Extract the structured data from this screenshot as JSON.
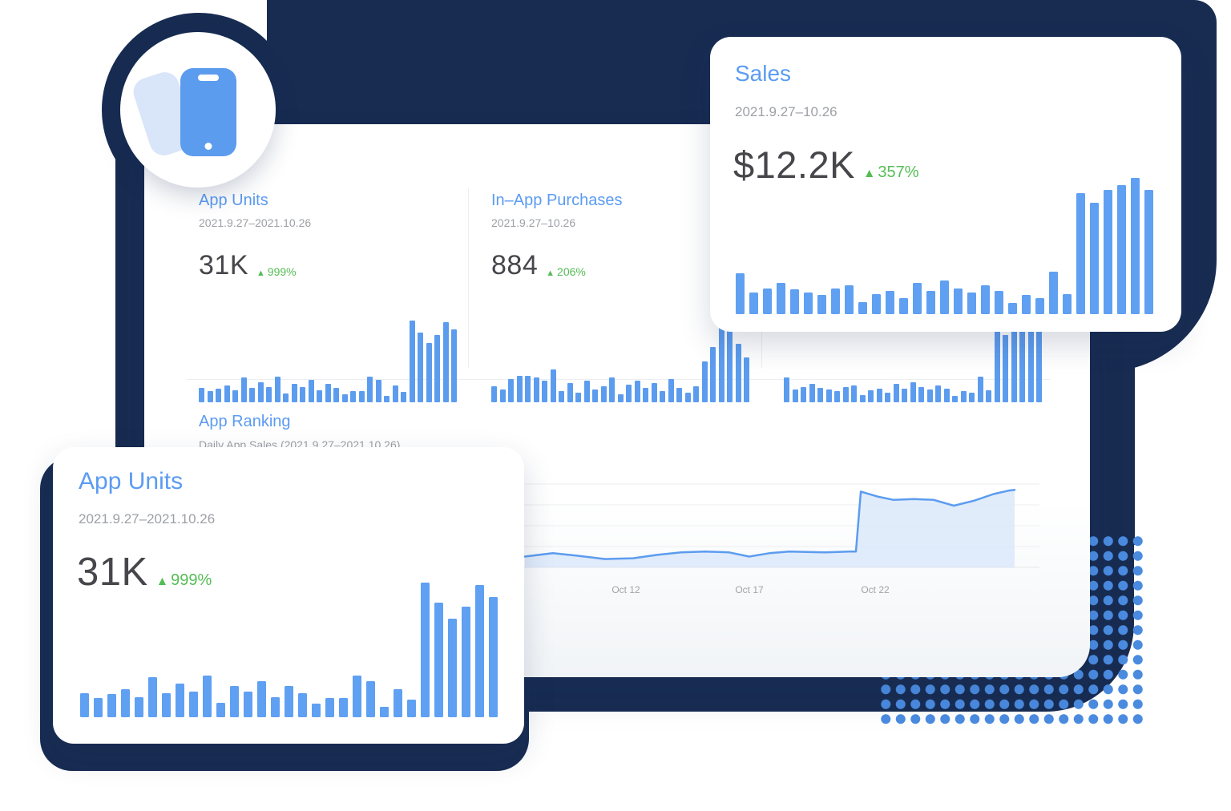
{
  "icons": {
    "up_arrow": "▲",
    "phone_icon": "smartphone"
  },
  "colors": {
    "navy_backdrop": "#182C52",
    "accent_blue": "#5B9BF2",
    "bar_blue": "#5C9CEF",
    "green_positive": "#55BD55",
    "dot_pattern_blue": "#4A8BE0",
    "value_text": "#46464B",
    "muted_text": "#9DA0A5"
  },
  "main_card": {
    "stats": [
      {
        "title": "App Units",
        "date_range": "2021.9.27–2021.10.26",
        "value": "31K",
        "delta": "999%"
      },
      {
        "title": "In–App Purchases",
        "date_range": "2021.9.27–10.26",
        "value": "884",
        "delta": "206%"
      }
    ],
    "ranking": {
      "title": "App Ranking",
      "subtitle": "Daily App Sales (2021.9.27–2021.10.26)",
      "x_ticks": [
        "Oct 12",
        "Oct 17",
        "Oct 22"
      ]
    }
  },
  "cards": {
    "sales": {
      "title": "Sales",
      "date_range": "2021.9.27–10.26",
      "value": "$12.2K",
      "delta": "357%"
    },
    "app_units_large": {
      "title": "App Units",
      "date_range": "2021.9.27–2021.10.26",
      "value": "31K",
      "delta": "999%"
    }
  },
  "chart_data": [
    {
      "type": "bar",
      "name": "app_units_daily",
      "title": "App Units",
      "period": "2021.9.27–2021.10.26",
      "total": "31K",
      "change_pct": "+999%",
      "scale": "relative 0–1 (no y-axis shown)",
      "values": [
        0.18,
        0.14,
        0.17,
        0.21,
        0.15,
        0.3,
        0.18,
        0.25,
        0.19,
        0.31,
        0.11,
        0.23,
        0.19,
        0.27,
        0.15,
        0.23,
        0.18,
        0.1,
        0.14,
        0.14,
        0.31,
        0.27,
        0.08,
        0.21,
        0.13,
        1.0,
        0.85,
        0.73,
        0.82,
        0.98,
        0.89
      ]
    },
    {
      "type": "bar",
      "name": "in_app_purchases_daily",
      "title": "In–App Purchases",
      "period": "2021.9.27–10.26",
      "total": "884",
      "change_pct": "+206%",
      "scale": "relative 0–1 (no y-axis shown)",
      "values": [
        0.2,
        0.16,
        0.28,
        0.32,
        0.32,
        0.3,
        0.26,
        0.4,
        0.14,
        0.24,
        0.12,
        0.26,
        0.16,
        0.2,
        0.3,
        0.1,
        0.22,
        0.26,
        0.18,
        0.24,
        0.14,
        0.28,
        0.18,
        0.12,
        0.2,
        0.5,
        0.68,
        1.0,
        0.88,
        0.72,
        0.55
      ]
    },
    {
      "type": "bar",
      "name": "sales_daily",
      "title": "Sales",
      "period": "2021.9.27–10.26",
      "total": "$12.2K",
      "change_pct": "+357%",
      "scale": "relative 0–1 (no y-axis shown)",
      "values": [
        0.3,
        0.16,
        0.19,
        0.23,
        0.18,
        0.16,
        0.14,
        0.19,
        0.21,
        0.09,
        0.15,
        0.17,
        0.12,
        0.23,
        0.17,
        0.25,
        0.19,
        0.16,
        0.21,
        0.17,
        0.08,
        0.14,
        0.12,
        0.31,
        0.15,
        0.89,
        0.82,
        0.91,
        0.95,
        1.0,
        0.91
      ]
    },
    {
      "type": "line",
      "name": "app_ranking",
      "title": "App Ranking",
      "subtitle": "Daily App Sales (2021.9.27–2021.10.26)",
      "x_ticks": [
        "Oct 12",
        "Oct 17",
        "Oct 22"
      ],
      "tick_x": [
        0.206,
        0.458,
        0.715
      ],
      "grid": true,
      "scale": "relative 0–1 (no y-axis shown)",
      "points": [
        [
          0.0,
          0.13
        ],
        [
          0.057,
          0.17
        ],
        [
          0.106,
          0.14
        ],
        [
          0.164,
          0.1
        ],
        [
          0.221,
          0.11
        ],
        [
          0.27,
          0.15
        ],
        [
          0.319,
          0.18
        ],
        [
          0.368,
          0.19
        ],
        [
          0.417,
          0.18
        ],
        [
          0.458,
          0.13
        ],
        [
          0.499,
          0.17
        ],
        [
          0.54,
          0.19
        ],
        [
          0.614,
          0.18
        ],
        [
          0.663,
          0.19
        ],
        [
          0.676,
          0.19
        ],
        [
          0.686,
          0.91
        ],
        [
          0.72,
          0.85
        ],
        [
          0.753,
          0.81
        ],
        [
          0.794,
          0.82
        ],
        [
          0.835,
          0.81
        ],
        [
          0.876,
          0.74
        ],
        [
          0.917,
          0.8
        ],
        [
          0.957,
          0.88
        ],
        [
          0.987,
          0.92
        ],
        [
          1.0,
          0.93
        ]
      ]
    }
  ]
}
